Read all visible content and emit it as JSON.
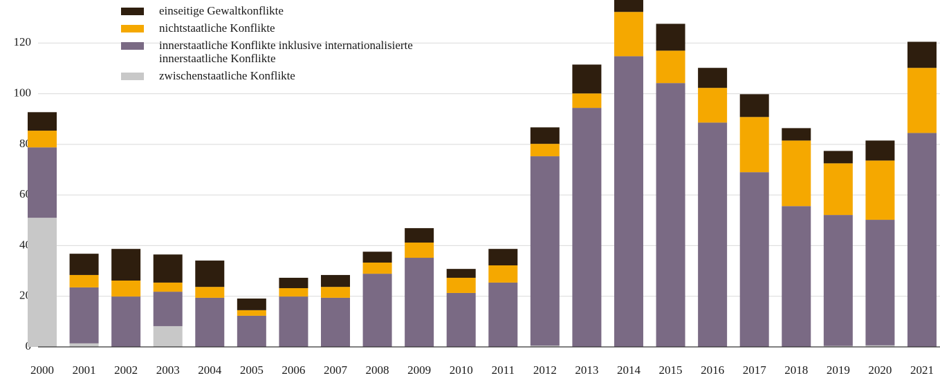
{
  "chart_data": {
    "type": "stacked_bar",
    "categories": [
      "2000",
      "2001",
      "2002",
      "2003",
      "2004",
      "2005",
      "2006",
      "2007",
      "2008",
      "2009",
      "2010",
      "2011",
      "2012",
      "2013",
      "2014",
      "2015",
      "2016",
      "2017",
      "2018",
      "2019",
      "2020",
      "2021"
    ],
    "series": [
      {
        "name": "zwischenstaatliche Konflikte",
        "color": "#c8c8c8",
        "values": [
          51,
          1.4,
          0,
          8.2,
          0,
          0,
          0,
          0,
          0,
          0,
          0,
          0,
          0.5,
          0,
          0,
          0,
          0,
          0,
          0,
          0.4,
          0.6,
          0
        ]
      },
      {
        "name": "innerstaatliche Konflikte inklusive internationalisierte innerstaatliche Konflikte",
        "color": "#7a6a84",
        "values": [
          27.8,
          22.1,
          19.9,
          13.6,
          19.4,
          12.3,
          19.9,
          19.4,
          28.9,
          35.2,
          21.3,
          25.4,
          74.8,
          94.4,
          114.8,
          104.2,
          88.6,
          69,
          55.6,
          51.7,
          49.6,
          84.5
        ]
      },
      {
        "name": "nichtstaatliche Konflikte",
        "color": "#f5a800",
        "values": [
          6.6,
          4.9,
          6.3,
          3.6,
          4.3,
          2.2,
          3.3,
          4.3,
          4.4,
          6,
          6,
          6.8,
          4.9,
          5.7,
          17.5,
          12.8,
          13.7,
          21.8,
          25.9,
          20.4,
          23.4,
          25.7
        ]
      },
      {
        "name": "einseitige Gewaltkonflikte",
        "color": "#2e1e0e",
        "values": [
          7.3,
          8.4,
          12.5,
          11.1,
          10.4,
          4.6,
          4.1,
          4.7,
          4.3,
          5.7,
          3.5,
          6.5,
          6.5,
          11.4,
          4.7,
          10.6,
          7.9,
          9,
          4.9,
          4.9,
          7.9,
          10.3
        ]
      }
    ],
    "ylim": [
      0,
      137
    ],
    "yticks": [
      0,
      20,
      40,
      60,
      80,
      100,
      120
    ],
    "grid": true
  }
}
